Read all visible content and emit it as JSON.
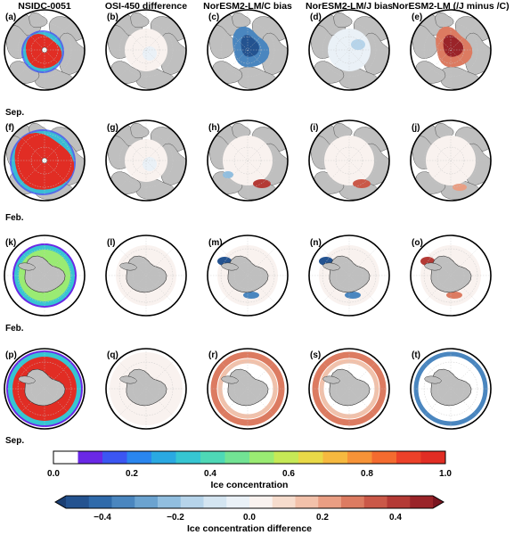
{
  "columns": [
    "NSIDC-0051",
    "OSI-450 difference",
    "NorESM2-LM/C bias",
    "NorESM2-LM/J bias",
    "NorESM2-LM (/J minus /C)"
  ],
  "rows": [
    {
      "hemisphere": "north",
      "season": "Sep.",
      "labels": [
        "(a)",
        "(b)",
        "(c)",
        "(d)",
        "(e)"
      ]
    },
    {
      "hemisphere": "north",
      "season": "Feb.",
      "labels": [
        "(f)",
        "(g)",
        "(h)",
        "(i)",
        "(j)"
      ]
    },
    {
      "hemisphere": "south",
      "season": "Feb.",
      "labels": [
        "(k)",
        "(l)",
        "(m)",
        "(n)",
        "(o)"
      ]
    },
    {
      "hemisphere": "south",
      "season": "Sep.",
      "labels": [
        "(p)",
        "(q)",
        "(r)",
        "(s)",
        "(t)"
      ]
    }
  ],
  "colorbar_concentration": {
    "title": "Ice concentration",
    "ticks": [
      "0.0",
      "0.2",
      "0.4",
      "0.6",
      "0.8",
      "1.0"
    ],
    "range": [
      0,
      1
    ],
    "colors": [
      "#ffffff",
      "#6a28e6",
      "#3b56f2",
      "#2a86ef",
      "#2aa9e2",
      "#36c6d2",
      "#4ed8b6",
      "#72e394",
      "#9aeb73",
      "#c6e956",
      "#e9d947",
      "#f6b93f",
      "#f79337",
      "#f46b2f",
      "#ec4129",
      "#e12d24"
    ]
  },
  "colorbar_difference": {
    "title": "Ice concentration difference",
    "ticks": [
      "−0.4",
      "−0.2",
      "0.0",
      "0.2",
      "0.4"
    ],
    "range": [
      -0.5,
      0.5
    ],
    "colors": [
      "#1b3f73",
      "#245390",
      "#2f6aaa",
      "#4a86bf",
      "#6ba3d0",
      "#91bedf",
      "#b6d4ea",
      "#d4e5f1",
      "#eaf1f7",
      "#f9f2ef",
      "#f6dccd",
      "#f2c1aa",
      "#e99e83",
      "#dc7b61",
      "#ca5848",
      "#b43a35",
      "#9a2429",
      "#7a1520"
    ]
  },
  "colors": {
    "land": "#bfbfbf",
    "ocean": "#ffffff",
    "grid": "#c8c8c8",
    "coast": "#333333"
  }
}
